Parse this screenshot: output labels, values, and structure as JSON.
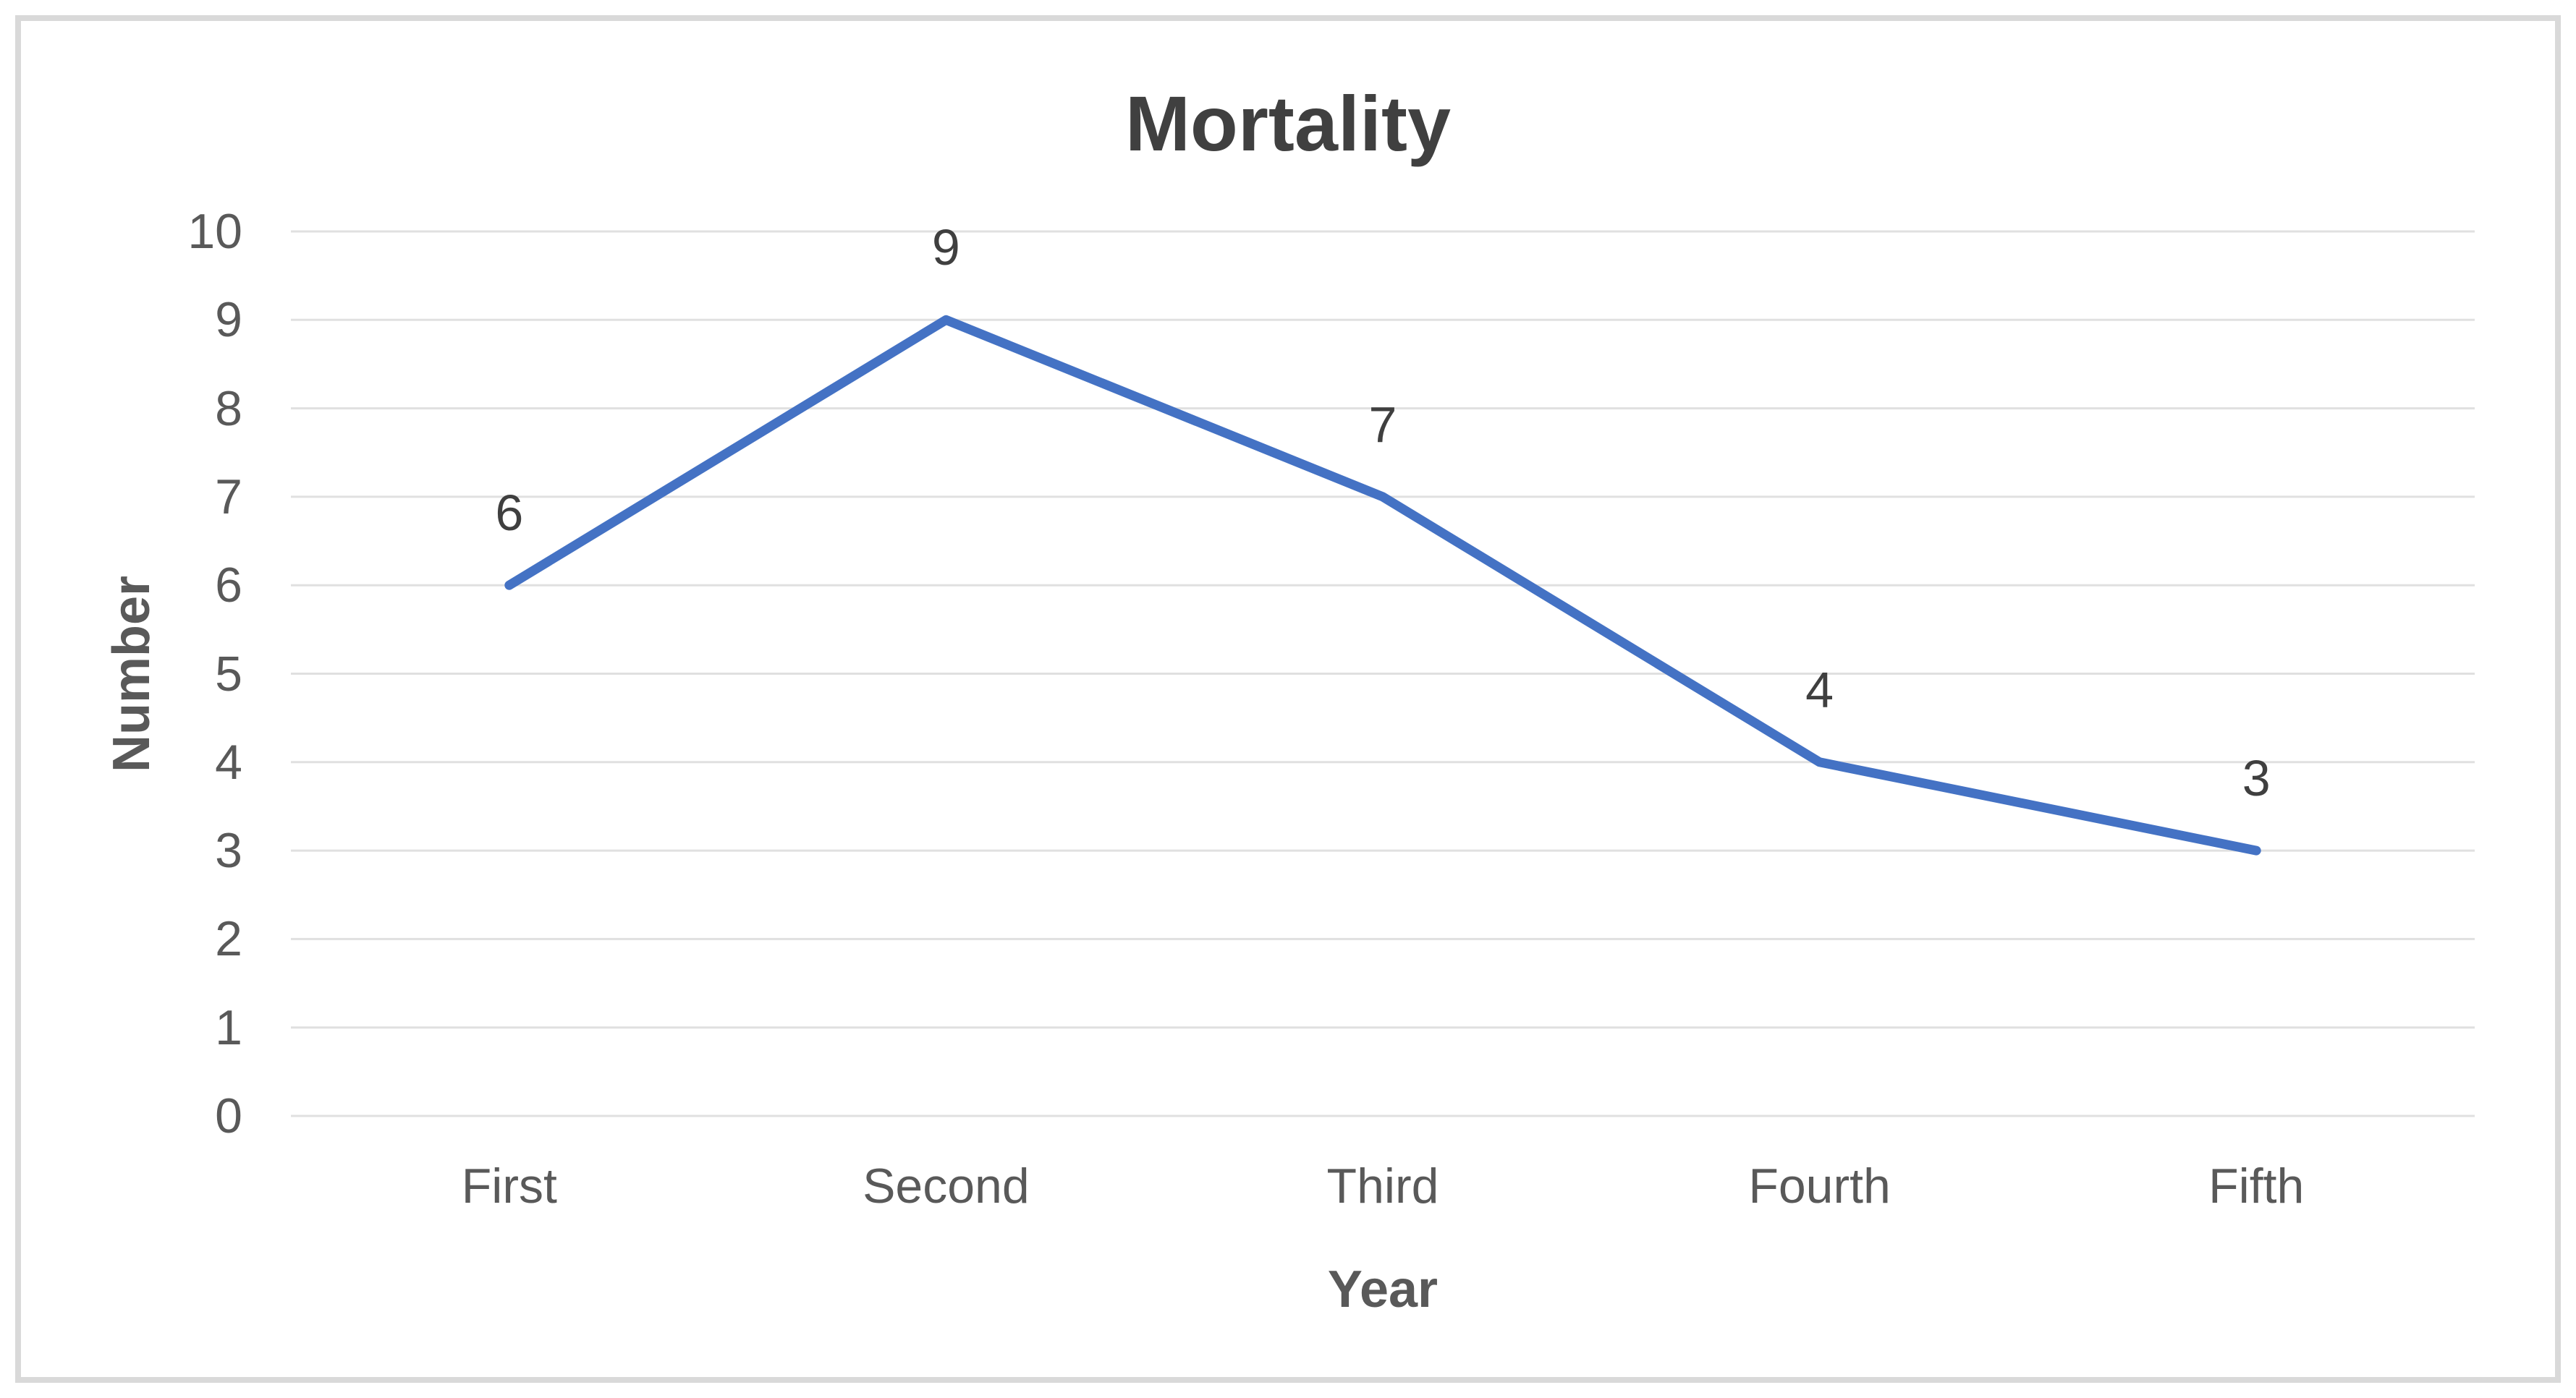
{
  "chart_data": {
    "type": "line",
    "title": "Mortality",
    "xlabel": "Year",
    "ylabel": "Number",
    "categories": [
      "First",
      "Second",
      "Third",
      "Fourth",
      "Fifth"
    ],
    "series": [
      {
        "name": "Mortality",
        "values": [
          6,
          9,
          7,
          4,
          3
        ]
      }
    ],
    "data_labels": [
      "6",
      "9",
      "7",
      "4",
      "3"
    ],
    "yticks": [
      "0",
      "1",
      "2",
      "3",
      "4",
      "5",
      "6",
      "7",
      "8",
      "9",
      "10"
    ],
    "ylim": [
      0,
      10
    ],
    "ytick_step": 1,
    "grid": true,
    "legend": "none",
    "colors": {
      "line": "#4472C4",
      "gridline": "#E0E0E0",
      "frame_border": "#D9D9D9",
      "title_text": "#404040",
      "data_label_text": "#3F3F3F",
      "tick_text": "#595959",
      "axis_title_text": "#595959",
      "background": "#FFFFFF"
    }
  }
}
